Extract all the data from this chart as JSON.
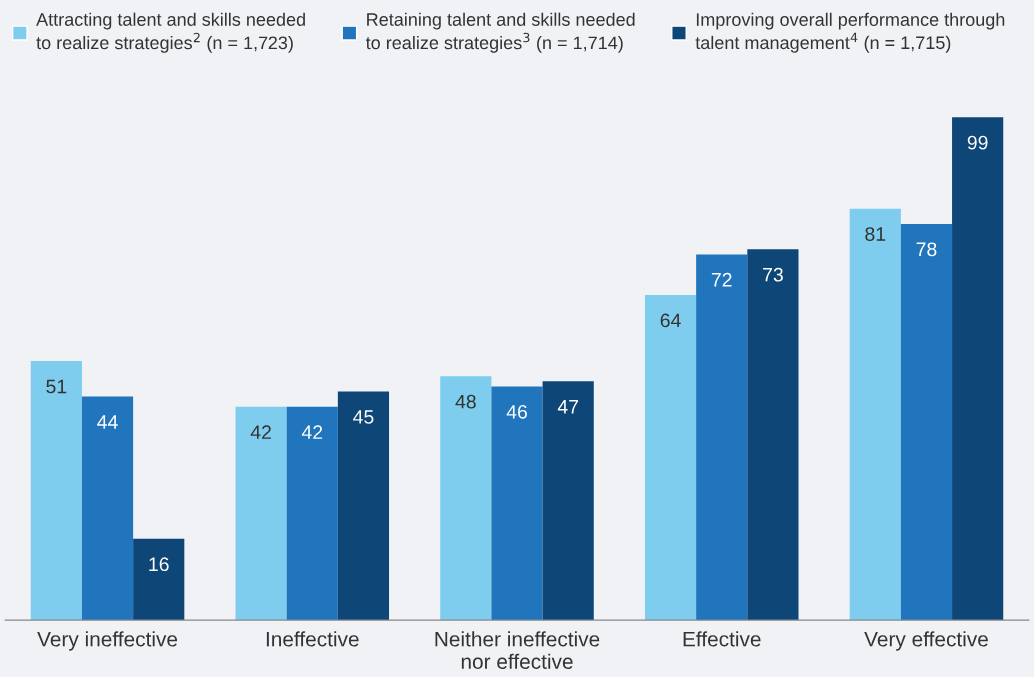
{
  "chart_data": {
    "type": "bar",
    "categories": [
      "Very ineffective",
      "Ineffective",
      "Neither ineffective\nnor effective",
      "Effective",
      "Very effective"
    ],
    "series": [
      {
        "name": "Attracting talent and skills needed\nto realize strategies$^{2}$ (n = 1,723)",
        "color": "#7fcdee",
        "values": [
          51,
          42,
          48,
          64,
          81
        ]
      },
      {
        "name": "Retaining talent and skills needed\nto realize strategies$^{3}$ (n = 1,714)",
        "color": "#2175bd",
        "values": [
          44,
          42,
          46,
          72,
          78
        ]
      },
      {
        "name": "Improving overall performance through\ntalent management$^{4}$ (n = 1,715)",
        "color": "#0e4677",
        "values": [
          16,
          45,
          47,
          73,
          99
        ]
      }
    ],
    "data_labels": true,
    "legend": "top",
    "grid": false
  }
}
